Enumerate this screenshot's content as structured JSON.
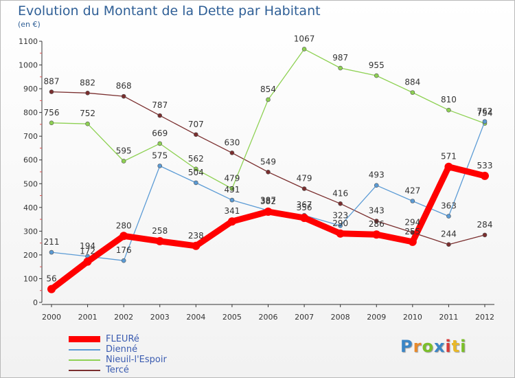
{
  "title": "Evolution du Montant de la Dette par Habitant",
  "subtitle": "(en €)",
  "logo": {
    "text": "Proxiti",
    "colors": [
      "#3b86c6",
      "#e8892a",
      "#7bbf2a",
      "#3b86c6",
      "#d83a3a",
      "#e8b82a",
      "#7bbf2a"
    ]
  },
  "chart_data": {
    "type": "line",
    "x": [
      "2000",
      "2001",
      "2002",
      "2003",
      "2004",
      "2005",
      "2006",
      "2007",
      "2008",
      "2009",
      "2010",
      "2011",
      "2012"
    ],
    "ylim": [
      0,
      1100
    ],
    "yticks": [
      0,
      100,
      200,
      300,
      400,
      500,
      600,
      700,
      800,
      900,
      1000,
      1100
    ],
    "grid": false,
    "legend_position": "bottom-left",
    "series": [
      {
        "name": "FLEURé",
        "color": "#ff0000",
        "values": [
          56,
          172,
          280,
          258,
          238,
          341,
          382,
          356,
          290,
          286,
          255,
          571,
          533
        ],
        "labels": [
          "56",
          "172",
          "280",
          "258",
          "238",
          "341",
          "382",
          "356",
          "290",
          "286",
          "255",
          "571",
          "533"
        ]
      },
      {
        "name": "Dienné",
        "color": "#5b9bd5",
        "values": [
          211,
          194,
          176,
          575,
          504,
          431,
          387,
          367,
          323,
          493,
          427,
          363,
          762
        ],
        "labels": [
          "211",
          "194",
          "176",
          "575",
          "504",
          "431",
          "387",
          "367",
          "323",
          "493",
          "427",
          "363",
          "762"
        ]
      },
      {
        "name": "Nieuil-l'Espoir",
        "color": "#8ed153",
        "values": [
          756,
          752,
          595,
          669,
          562,
          479,
          null,
          1067,
          987,
          955,
          884,
          810,
          754
        ],
        "labels": [
          "756",
          "752",
          "595",
          "669",
          "562",
          "479",
          "854",
          "1067",
          "987",
          "955",
          "884",
          "810",
          "754"
        ],
        "point_2006": 854
      },
      {
        "name": "Tercé",
        "color": "#7a2e2e",
        "values": [
          887,
          882,
          868,
          787,
          707,
          630,
          549,
          479,
          416,
          343,
          294,
          244,
          284
        ],
        "labels": [
          "887",
          "882",
          "868",
          "787",
          "707",
          "630",
          "549",
          "479",
          "416",
          "343",
          "294",
          "244",
          "284"
        ]
      }
    ]
  }
}
